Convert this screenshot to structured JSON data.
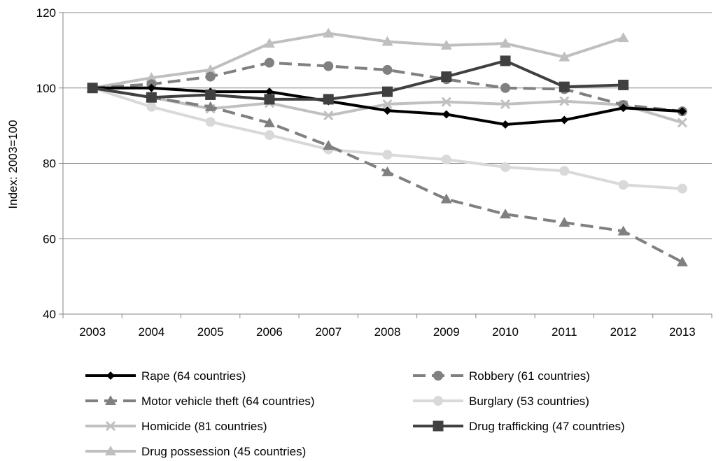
{
  "chart_data": {
    "type": "line",
    "title": "",
    "xlabel": "",
    "ylabel": "Index: 2003=100",
    "ylim": [
      40,
      120
    ],
    "yticks": [
      "40",
      "60",
      "80",
      "100",
      "120"
    ],
    "categories": [
      "2003",
      "2004",
      "2005",
      "2006",
      "2007",
      "2008",
      "2009",
      "2010",
      "2011",
      "2012",
      "2013"
    ],
    "grid": "horizontal",
    "legend_position": "bottom",
    "series": [
      {
        "name": "Rape (64 countries)",
        "color": "#000000",
        "dash": "solid",
        "marker": "diamond",
        "values": [
          100,
          100,
          99,
          99,
          96.5,
          94,
          93,
          90.3,
          91.5,
          94.7,
          93.8
        ]
      },
      {
        "name": "Robbery (61 countries)",
        "color": "#808080",
        "dash": "dashed",
        "marker": "circle",
        "values": [
          100,
          101,
          103,
          106.7,
          105.8,
          104.8,
          102.3,
          100,
          99.7,
          95.5,
          93.8
        ]
      },
      {
        "name": "Motor vehicle theft (64 countries)",
        "color": "#808080",
        "dash": "dashed",
        "marker": "triangle",
        "values": [
          100,
          97.5,
          95,
          90.7,
          84.7,
          77.7,
          70.5,
          66.5,
          64.3,
          62,
          53.8
        ]
      },
      {
        "name": "Burglary (53 countries)",
        "color": "#d9d9d9",
        "dash": "solid",
        "marker": "circle",
        "values": [
          100,
          95,
          91,
          87.5,
          83.7,
          82.3,
          81,
          79,
          78,
          74.3,
          73.3
        ]
      },
      {
        "name": "Homicide (81 countries)",
        "color": "#c0c0c0",
        "dash": "solid",
        "marker": "x",
        "values": [
          100,
          97.5,
          94.5,
          96,
          92.7,
          95.7,
          96.3,
          95.7,
          96.5,
          95.5,
          90.8
        ]
      },
      {
        "name": "Drug trafficking (47 countries)",
        "color": "#404040",
        "dash": "solid",
        "marker": "square",
        "values": [
          100,
          97.5,
          98.2,
          97,
          97,
          99,
          103,
          107.2,
          100.3,
          100.8,
          null
        ]
      },
      {
        "name": "Drug possession (45 countries)",
        "color": "#bfbfbf",
        "dash": "solid",
        "marker": "triangle",
        "values": [
          100,
          102.7,
          104.8,
          111.8,
          114.5,
          112.3,
          111.3,
          111.8,
          108.2,
          113.3,
          null
        ]
      }
    ]
  }
}
